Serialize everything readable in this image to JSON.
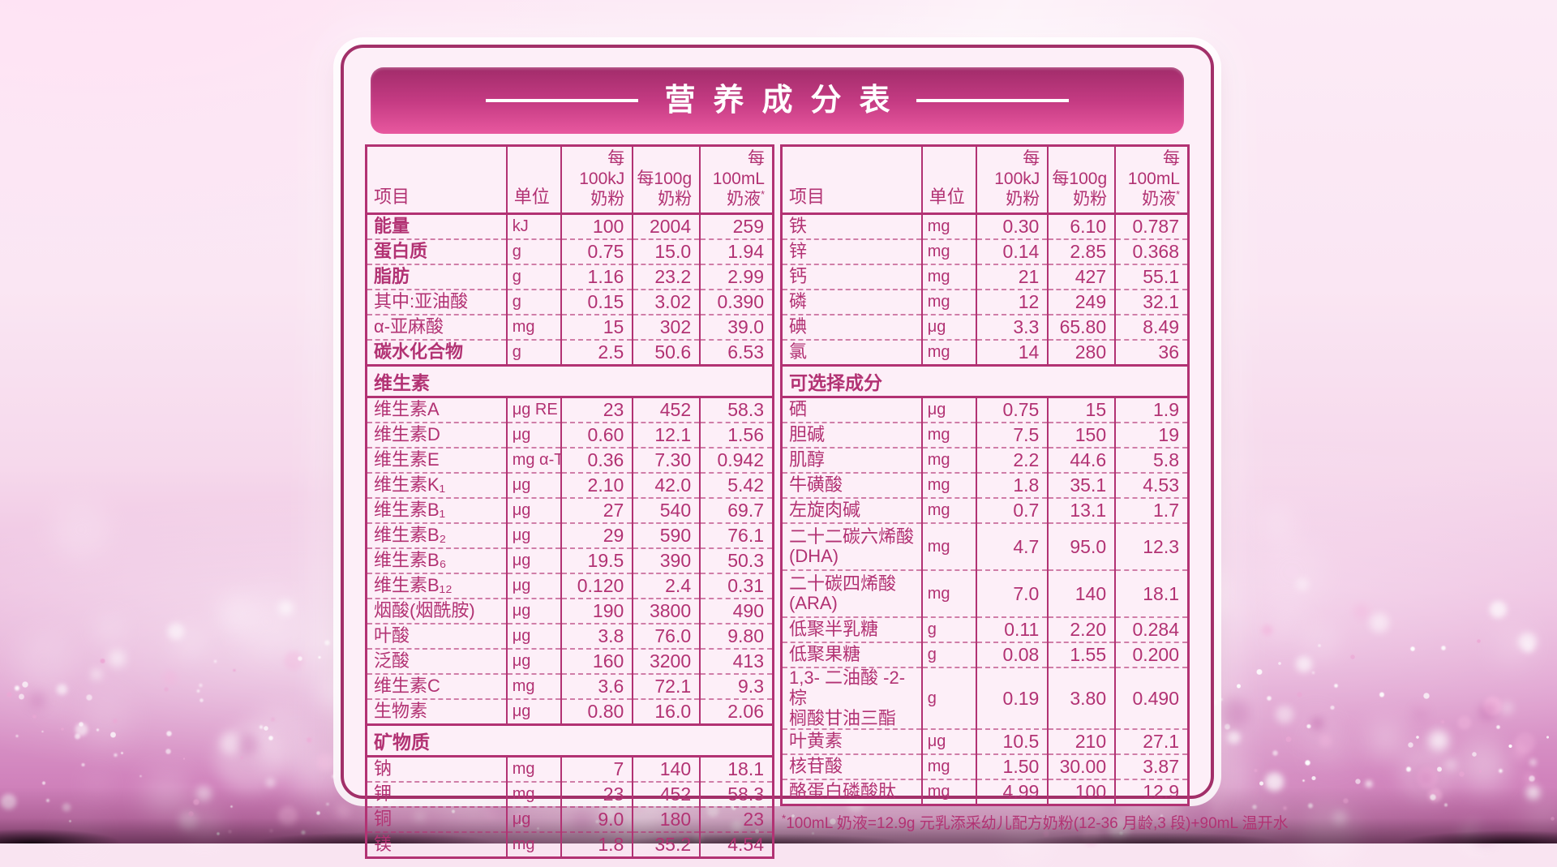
{
  "title": "营养成分表",
  "colors": {
    "accent_magenta": "#b23273",
    "banner_gradient_top": "#a12c6a",
    "banner_gradient_bottom": "#e8589f",
    "card_background": "#fdeff8",
    "card_border": "#a23069"
  },
  "tables": {
    "left": {
      "columns": [
        {
          "label": "项目"
        },
        {
          "label": "单位"
        },
        {
          "l1": "每100kJ",
          "l2": "奶粉"
        },
        {
          "l1": "每100g",
          "l2": "奶粉"
        },
        {
          "l1": "每100mL",
          "l2": "奶液",
          "sup": "*"
        }
      ],
      "sections": [
        {
          "rows": [
            {
              "name": "能量",
              "unit": "kJ",
              "v": [
                "100",
                "2004",
                "259"
              ],
              "bold": true
            },
            {
              "name": "蛋白质",
              "unit": "g",
              "v": [
                "0.75",
                "15.0",
                "1.94"
              ],
              "bold": true
            },
            {
              "name": "脂肪",
              "unit": "g",
              "v": [
                "1.16",
                "23.2",
                "2.99"
              ],
              "bold": true
            },
            {
              "name": "其中:亚油酸",
              "unit": "g",
              "v": [
                "0.15",
                "3.02",
                "0.390"
              ]
            },
            {
              "name": "α-亚麻酸",
              "unit": "mg",
              "v": [
                "15",
                "302",
                "39.0"
              ]
            },
            {
              "name": "碳水化合物",
              "unit": "g",
              "v": [
                "2.5",
                "50.6",
                "6.53"
              ],
              "bold": true
            }
          ]
        },
        {
          "header": "维生素",
          "rows": [
            {
              "name": "维生素A",
              "unit": "μg RE",
              "v": [
                "23",
                "452",
                "58.3"
              ]
            },
            {
              "name": "维生素D",
              "unit": "μg",
              "v": [
                "0.60",
                "12.1",
                "1.56"
              ]
            },
            {
              "name": "维生素E",
              "unit": "mg α-TE",
              "v": [
                "0.36",
                "7.30",
                "0.942"
              ]
            },
            {
              "name": "维生素K₁",
              "unit": "μg",
              "v": [
                "2.10",
                "42.0",
                "5.42"
              ]
            },
            {
              "name": "维生素B₁",
              "unit": "μg",
              "v": [
                "27",
                "540",
                "69.7"
              ]
            },
            {
              "name": "维生素B₂",
              "unit": "μg",
              "v": [
                "29",
                "590",
                "76.1"
              ]
            },
            {
              "name": "维生素B₆",
              "unit": "μg",
              "v": [
                "19.5",
                "390",
                "50.3"
              ]
            },
            {
              "name": "维生素B₁₂",
              "unit": "μg",
              "v": [
                "0.120",
                "2.4",
                "0.31"
              ]
            },
            {
              "name": "烟酸(烟酰胺)",
              "unit": "μg",
              "v": [
                "190",
                "3800",
                "490"
              ]
            },
            {
              "name": "叶酸",
              "unit": "μg",
              "v": [
                "3.8",
                "76.0",
                "9.80"
              ]
            },
            {
              "name": "泛酸",
              "unit": "μg",
              "v": [
                "160",
                "3200",
                "413"
              ]
            },
            {
              "name": "维生素C",
              "unit": "mg",
              "v": [
                "3.6",
                "72.1",
                "9.3"
              ]
            },
            {
              "name": "生物素",
              "unit": "μg",
              "v": [
                "0.80",
                "16.0",
                "2.06"
              ]
            }
          ]
        },
        {
          "header": "矿物质",
          "rows": [
            {
              "name": "钠",
              "unit": "mg",
              "v": [
                "7",
                "140",
                "18.1"
              ]
            },
            {
              "name": "钾",
              "unit": "mg",
              "v": [
                "23",
                "452",
                "58.3"
              ]
            },
            {
              "name": "铜",
              "unit": "μg",
              "v": [
                "9.0",
                "180",
                "23"
              ]
            },
            {
              "name": "镁",
              "unit": "mg",
              "v": [
                "1.8",
                "35.2",
                "4.54"
              ]
            }
          ]
        }
      ]
    },
    "right": {
      "columns": [
        {
          "label": "项目"
        },
        {
          "label": "单位"
        },
        {
          "l1": "每100kJ",
          "l2": "奶粉"
        },
        {
          "l1": "每100g",
          "l2": "奶粉"
        },
        {
          "l1": "每100mL",
          "l2": "奶液",
          "sup": "*"
        }
      ],
      "sections": [
        {
          "rows": [
            {
              "name": "铁",
              "unit": "mg",
              "v": [
                "0.30",
                "6.10",
                "0.787"
              ]
            },
            {
              "name": "锌",
              "unit": "mg",
              "v": [
                "0.14",
                "2.85",
                "0.368"
              ]
            },
            {
              "name": "钙",
              "unit": "mg",
              "v": [
                "21",
                "427",
                "55.1"
              ]
            },
            {
              "name": "磷",
              "unit": "mg",
              "v": [
                "12",
                "249",
                "32.1"
              ]
            },
            {
              "name": "碘",
              "unit": "μg",
              "v": [
                "3.3",
                "65.80",
                "8.49"
              ]
            },
            {
              "name": "氯",
              "unit": "mg",
              "v": [
                "14",
                "280",
                "36"
              ]
            }
          ]
        },
        {
          "header": "可选择成分",
          "rows": [
            {
              "name": "硒",
              "unit": "μg",
              "v": [
                "0.75",
                "15",
                "1.9"
              ]
            },
            {
              "name": "胆碱",
              "unit": "mg",
              "v": [
                "7.5",
                "150",
                "19"
              ]
            },
            {
              "name": "肌醇",
              "unit": "mg",
              "v": [
                "2.2",
                "44.6",
                "5.8"
              ]
            },
            {
              "name": "牛磺酸",
              "unit": "mg",
              "v": [
                "1.8",
                "35.1",
                "4.53"
              ]
            },
            {
              "name": "左旋肉碱",
              "unit": "mg",
              "v": [
                "0.7",
                "13.1",
                "1.7"
              ]
            },
            {
              "name": "二十二碳六烯酸\n(DHA)",
              "unit": "mg",
              "v": [
                "4.7",
                "95.0",
                "12.3"
              ],
              "tall": true
            },
            {
              "name": "二十碳四烯酸\n(ARA)",
              "unit": "mg",
              "v": [
                "7.0",
                "140",
                "18.1"
              ],
              "tall": true
            },
            {
              "name": "低聚半乳糖",
              "unit": "g",
              "v": [
                "0.11",
                "2.20",
                "0.284"
              ]
            },
            {
              "name": "低聚果糖",
              "unit": "g",
              "v": [
                "0.08",
                "1.55",
                "0.200"
              ]
            },
            {
              "name": "1,3- 二油酸 -2- 棕\n榈酸甘油三酯",
              "unit": "g",
              "v": [
                "0.19",
                "3.80",
                "0.490"
              ],
              "tall": true
            },
            {
              "name": "叶黄素",
              "unit": "μg",
              "v": [
                "10.5",
                "210",
                "27.1"
              ]
            },
            {
              "name": "核苷酸",
              "unit": "mg",
              "v": [
                "1.50",
                "30.00",
                "3.87"
              ]
            },
            {
              "name": "酪蛋白磷酸肽",
              "unit": "mg",
              "v": [
                "4.99",
                "100",
                "12.9"
              ]
            }
          ]
        }
      ]
    }
  },
  "footnote": {
    "sup": "*",
    "text": "100mL 奶液=12.9g 元乳添采幼儿配方奶粉(12-36 月龄,3 段)+90mL 温开水"
  }
}
